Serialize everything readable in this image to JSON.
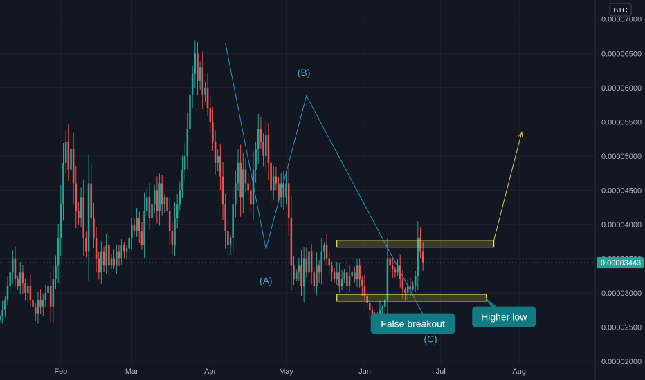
{
  "colors": {
    "background": "#131722",
    "grid": "#1e222d",
    "up": "#26a69a",
    "down": "#ef5350",
    "text": "#b2b5be",
    "wave_line": "#2196c8",
    "zone": "#f2e35a",
    "projection": "#e8c93f",
    "note_bg": "#137a84"
  },
  "currency_badge": "BTC",
  "current_price_label": "0.00003443",
  "chart_data": {
    "type": "candlestick",
    "title": "",
    "y_unit": "BTC",
    "ylim": [
      1.95e-05,
      7.28e-05
    ],
    "y_ticks": [
      {
        "value": 7e-05,
        "label": "0.00007000"
      },
      {
        "value": 6.5e-05,
        "label": "0.00006500"
      },
      {
        "value": 6e-05,
        "label": "0.00006000"
      },
      {
        "value": 5.5e-05,
        "label": "0.00005500"
      },
      {
        "value": 5e-05,
        "label": "0.00005000"
      },
      {
        "value": 4.5e-05,
        "label": "0.00004500"
      },
      {
        "value": 4e-05,
        "label": "0.00004000"
      },
      {
        "value": 3.5e-05,
        "label": "0.00003500"
      },
      {
        "value": 3e-05,
        "label": "0.00003000"
      },
      {
        "value": 2.5e-05,
        "label": "0.00002500"
      },
      {
        "value": 2e-05,
        "label": "0.00002000"
      }
    ],
    "x_range": [
      "2023-01-08",
      "2023-08-31"
    ],
    "x_ticks": [
      {
        "date": "2023-02-01",
        "label": "Feb"
      },
      {
        "date": "2023-03-01",
        "label": "Mar"
      },
      {
        "date": "2023-04-01",
        "label": "Apr"
      },
      {
        "date": "2023-05-01",
        "label": "May"
      },
      {
        "date": "2023-06-01",
        "label": "Jun"
      },
      {
        "date": "2023-07-01",
        "label": "Jul"
      },
      {
        "date": "2023-08-01",
        "label": "Aug"
      }
    ],
    "grid": true,
    "current_price": 3.443e-05,
    "start_date": "2023-01-08",
    "closes": [
      2.66e-05,
      2.75e-05,
      2.9e-05,
      3.1e-05,
      3.3e-05,
      3.5e-05,
      3.2e-05,
      3.1e-05,
      3.3e-05,
      3.15e-05,
      3e-05,
      3.1e-05,
      2.9e-05,
      2.8e-05,
      2.7e-05,
      2.9e-05,
      2.8e-05,
      2.9e-05,
      3e-05,
      3.1e-05,
      2.8e-05,
      3.2e-05,
      3.4e-05,
      3.8e-05,
      4.3e-05,
      4.9e-05,
      5.2e-05,
      4.8e-05,
      5.1e-05,
      4.6e-05,
      4.2e-05,
      4.1e-05,
      4.4e-05,
      3.8e-05,
      3.6e-05,
      4.6e-05,
      4.1e-05,
      3.8e-05,
      3.5e-05,
      3.3e-05,
      3.6e-05,
      3.4e-05,
      3.7e-05,
      3.4e-05,
      3.5e-05,
      3.4e-05,
      3.6e-05,
      3.5e-05,
      3.7e-05,
      3.6e-05,
      3.65e-05,
      3.8e-05,
      4e-05,
      3.9e-05,
      4.1e-05,
      3.9e-05,
      3.7e-05,
      4.2e-05,
      4.4e-05,
      4.1e-05,
      4.3e-05,
      4.5e-05,
      4.2e-05,
      4.6e-05,
      4.3e-05,
      4.4e-05,
      4.2e-05,
      3.9e-05,
      3.7e-05,
      4.1e-05,
      4.3e-05,
      4.5e-05,
      4.8e-05,
      5e-05,
      5.4e-05,
      5.9e-05,
      6.2e-05,
      6.5e-05,
      6.1e-05,
      6.3e-05,
      5.9e-05,
      6e-05,
      5.7e-05,
      5.5e-05,
      5.2e-05,
      4.9e-05,
      5e-05,
      4.7e-05,
      4.3e-05,
      3.9e-05,
      3.7e-05,
      3.8e-05,
      4.3e-05,
      4.6e-05,
      4.9e-05,
      4.4e-05,
      4.8e-05,
      4.6e-05,
      4.5e-05,
      4.3e-05,
      4.8e-05,
      5.1e-05,
      5.4e-05,
      5.2e-05,
      5e-05,
      5.3e-05,
      4.9e-05,
      4.5e-05,
      4.7e-05,
      4.6e-05,
      4.4e-05,
      4.6e-05,
      4.4e-05,
      4.6e-05,
      4.1e-05,
      3.4e-05,
      3.2e-05,
      3.3e-05,
      3.4e-05,
      3.1e-05,
      3.5e-05,
      3.3e-05,
      3.6e-05,
      3.3e-05,
      3.1e-05,
      3.4e-05,
      3.3e-05,
      3.6e-05,
      3.7e-05,
      3.5e-05,
      3.4e-05,
      3.3e-05,
      3.2e-05,
      3.3e-05,
      3.1e-05,
      3.2e-05,
      3.3e-05,
      3.1e-05,
      3.25e-05,
      3.3e-05,
      3.2e-05,
      3.4e-05,
      3.2e-05,
      3.1e-05,
      2.95e-05,
      2.85e-05,
      2.75e-05,
      2.65e-05,
      2.6e-05,
      2.65e-05,
      2.75e-05,
      2.8e-05,
      2.9e-05,
      3.5e-05,
      3.4e-05,
      3.35e-05,
      3.3e-05,
      3.4e-05,
      3.2e-05,
      3.05e-05,
      3e-05,
      3.1e-05,
      3.05e-05,
      3.1e-05,
      3.25e-05,
      3.8e-05,
      3.6e-05,
      3.44e-05
    ]
  },
  "annotations": {
    "wave_labels": [
      {
        "id": "a",
        "text": "(A)",
        "date": "2023-04-23",
        "price": 3.13e-05
      },
      {
        "id": "b",
        "text": "(B)",
        "date": "2023-05-08",
        "price": 6.17e-05
      },
      {
        "id": "c",
        "text": "(C)",
        "date": "2023-06-27",
        "price": 2.28e-05
      }
    ],
    "wave_path": [
      {
        "date": "2023-04-07",
        "price": 6.65e-05
      },
      {
        "date": "2023-04-23",
        "price": 3.64e-05
      },
      {
        "date": "2023-05-09",
        "price": 5.88e-05
      },
      {
        "date": "2023-06-25",
        "price": 2.62e-05
      }
    ],
    "zones": [
      {
        "id": "resistance",
        "date_from": "2023-05-21",
        "date_to": "2023-07-22",
        "price_from": 3.67e-05,
        "price_to": 3.77e-05
      },
      {
        "id": "support",
        "date_from": "2023-05-21",
        "date_to": "2023-07-19",
        "price_from": 2.88e-05,
        "price_to": 2.98e-05
      }
    ],
    "projection": {
      "from_date": "2023-07-22",
      "from_price": 3.77e-05,
      "to_date": "2023-08-02",
      "to_price": 5.35e-05
    },
    "notes": [
      {
        "id": "false-breakout",
        "text": "False breakout",
        "date": "2023-06-20",
        "price": 2.55e-05,
        "pointer_date": "2023-06-24",
        "pointer_price": 2.6e-05
      },
      {
        "id": "higher-low",
        "text": "Higher low",
        "date": "2023-07-26",
        "price": 2.65e-05,
        "pointer_date": "2023-07-18",
        "pointer_price": 2.95e-05
      }
    ]
  }
}
